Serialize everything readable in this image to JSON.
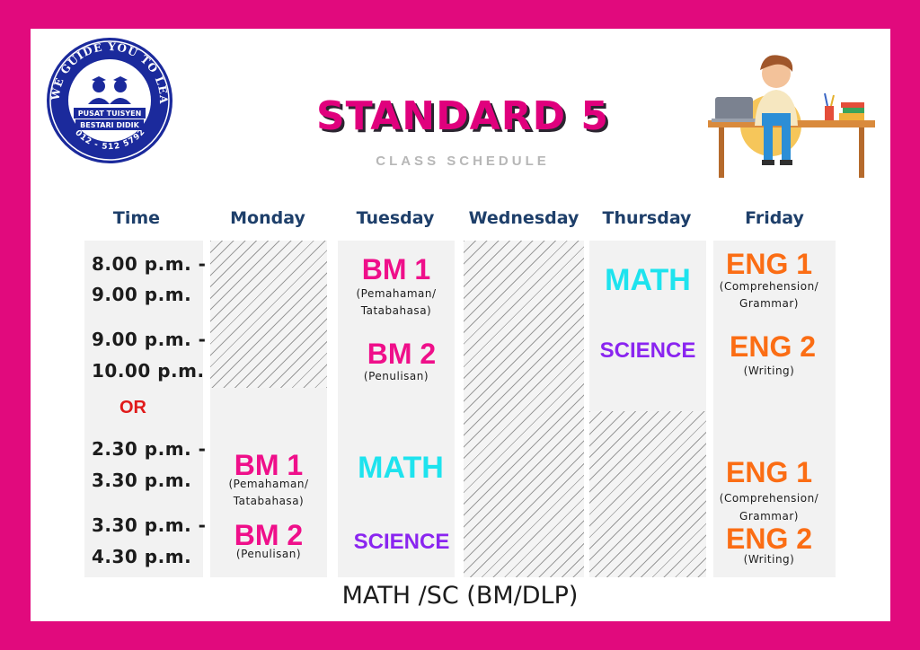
{
  "logo": {
    "ring_text": "WE GUIDE YOU TO LEAD YOUR FUTURE",
    "ring_small": "HONESTY • RESPECT • DISCIPLINE • DEDICATION • RESPONSIBILITY",
    "line1": "PUSAT TUISYEN",
    "line2": "BESTARI DIDIK",
    "phone": "012 - 512 5792"
  },
  "header": {
    "title": "STANDARD 5",
    "subtitle": "CLASS SCHEDULE"
  },
  "days": {
    "time": "Time",
    "monday": "Monday",
    "tuesday": "Tuesday",
    "wednesday": "Wednesday",
    "thursday": "Thursday",
    "friday": "Friday"
  },
  "times": {
    "slot1_a": "8.00  p.m. -",
    "slot1_b": "9.00 p.m.",
    "slot2_a": "9.00 p.m. -",
    "slot2_b": "10.00 p.m.",
    "or": "OR",
    "slot3_a": "2.30 p.m. -",
    "slot3_b": "3.30 p.m.",
    "slot4_a": "3.30 p.m. -",
    "slot4_b": "4.30 p.m."
  },
  "monday": {
    "s1": "BM 1",
    "s1_note_a": "(Pemahaman/",
    "s1_note_b": "Tatabahasa)",
    "s2": "BM 2",
    "s2_note": "(Penulisan)"
  },
  "tuesday": {
    "s1": "BM 1",
    "s1_note_a": "(Pemahaman/",
    "s1_note_b": "Tatabahasa)",
    "s2": "BM 2",
    "s2_note": "(Penulisan)",
    "s3": "MATH",
    "s4": "SCIENCE"
  },
  "thursday": {
    "s1": "MATH",
    "s2": "SCIENCE"
  },
  "friday": {
    "s1": "ENG 1",
    "s1_note_a": "(Comprehension/",
    "s1_note_b": "Grammar)",
    "s2": "ENG 2",
    "s2_note": "(Writing)",
    "s3": "ENG 1",
    "s3_note_a": "(Comprehension/",
    "s3_note_b": "Grammar)",
    "s4": "ENG 2",
    "s4_note": "(Writing)"
  },
  "footer": "MATH /SC (BM/DLP)",
  "colors": {
    "frame": "#e10a7d",
    "pink": "#ef0f8a",
    "cyan": "#1ee3ee",
    "purple": "#8a25f0",
    "orange": "#fb6d14",
    "navy": "#1e3f6a"
  }
}
